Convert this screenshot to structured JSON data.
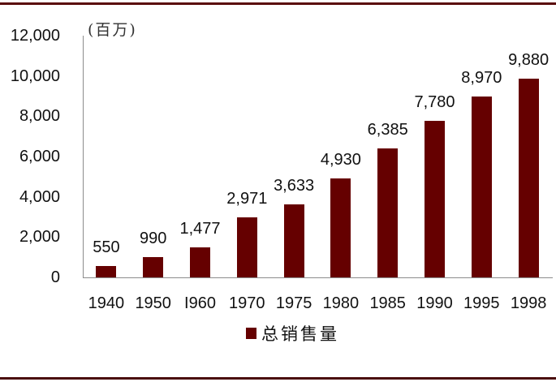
{
  "chart_data": {
    "type": "bar",
    "title": "",
    "unit_label": "(百万)",
    "xlabel": "",
    "ylabel": "",
    "categories": [
      "1940",
      "1950",
      "I960",
      "1970",
      "1975",
      "1980",
      "1985",
      "1990",
      "1995",
      "1998"
    ],
    "series": [
      {
        "name": "总销售量",
        "color": "#650000",
        "values": [
          550,
          990,
          1477,
          2971,
          3633,
          4930,
          6385,
          7780,
          8970,
          9880
        ],
        "value_labels": [
          "550",
          "990",
          "1,477",
          "2,971",
          "3,633",
          "4,930",
          "6,385",
          "7,780",
          "8,970",
          "9,880"
        ]
      }
    ],
    "ylim": [
      0,
      12000
    ],
    "yticks": [
      "0",
      "2,000",
      "4,000",
      "6,000",
      "8,000",
      "10,000",
      "12,000"
    ],
    "ytick_values": [
      0,
      2000,
      4000,
      6000,
      8000,
      10000,
      12000
    ],
    "grid": false,
    "legend_position": "bottom"
  },
  "colors": {
    "bar": "#650000",
    "rule": "#5a0a0a",
    "axis": "#8c8c8c"
  }
}
